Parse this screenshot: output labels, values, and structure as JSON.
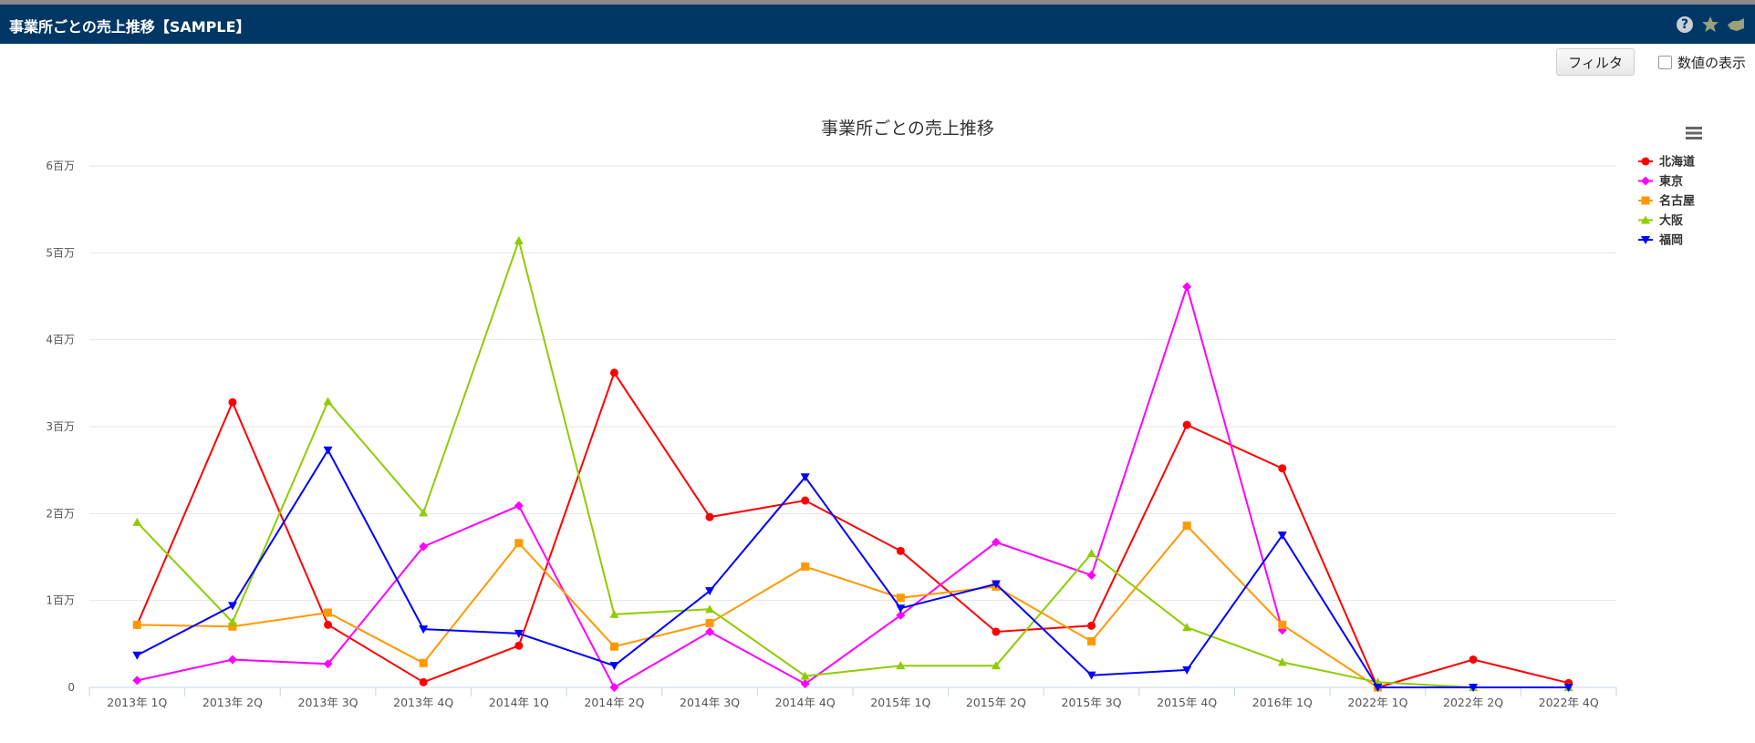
{
  "header": {
    "title": "事業所ごとの売上推移【SAMPLE】"
  },
  "toolbar": {
    "filter_label": "フィルタ",
    "show_values_label": "数値の表示"
  },
  "chart_data": {
    "type": "line",
    "title": "事業所ごとの売上推移",
    "xlabel": "",
    "ylabel": "",
    "ylim": [
      0,
      6000000
    ],
    "yticks": [
      0,
      1000000,
      2000000,
      3000000,
      4000000,
      5000000,
      6000000
    ],
    "ytick_labels": [
      "0",
      "1百万",
      "2百万",
      "3百万",
      "4百万",
      "5百万",
      "6百万"
    ],
    "grid": "horizontal",
    "legend_position": "right",
    "categories": [
      "2013年 1Q",
      "2013年 2Q",
      "2013年 3Q",
      "2013年 4Q",
      "2014年 1Q",
      "2014年 2Q",
      "2014年 3Q",
      "2014年 4Q",
      "2015年 1Q",
      "2015年 2Q",
      "2015年 3Q",
      "2015年 4Q",
      "2016年 1Q",
      "2022年 1Q",
      "2022年 2Q",
      "2022年 4Q"
    ],
    "series": [
      {
        "name": "北海道",
        "color": "#ff0000",
        "marker": "circle",
        "values": [
          720000,
          3280000,
          720000,
          60000,
          480000,
          3620000,
          1960000,
          2150000,
          1570000,
          640000,
          710000,
          3020000,
          2520000,
          0,
          320000,
          50000
        ]
      },
      {
        "name": "東京",
        "color": "#ff00ff",
        "marker": "diamond",
        "values": [
          80000,
          320000,
          270000,
          1620000,
          2090000,
          0,
          640000,
          40000,
          830000,
          1670000,
          1290000,
          4610000,
          660000,
          null,
          null,
          null
        ]
      },
      {
        "name": "名古屋",
        "color": "#ff9900",
        "marker": "square",
        "values": [
          720000,
          700000,
          860000,
          280000,
          1660000,
          470000,
          740000,
          1390000,
          1030000,
          1160000,
          530000,
          1860000,
          720000,
          0,
          null,
          null
        ]
      },
      {
        "name": "大阪",
        "color": "#8fcc00",
        "marker": "triangle",
        "values": [
          1900000,
          750000,
          3290000,
          2010000,
          5140000,
          840000,
          900000,
          130000,
          250000,
          250000,
          1540000,
          690000,
          290000,
          60000,
          0,
          0
        ]
      },
      {
        "name": "福岡",
        "color": "#0000ff",
        "marker": "triangle-down",
        "values": [
          370000,
          940000,
          2730000,
          670000,
          620000,
          250000,
          1110000,
          2420000,
          910000,
          1190000,
          140000,
          200000,
          1750000,
          0,
          0,
          0
        ]
      }
    ]
  }
}
